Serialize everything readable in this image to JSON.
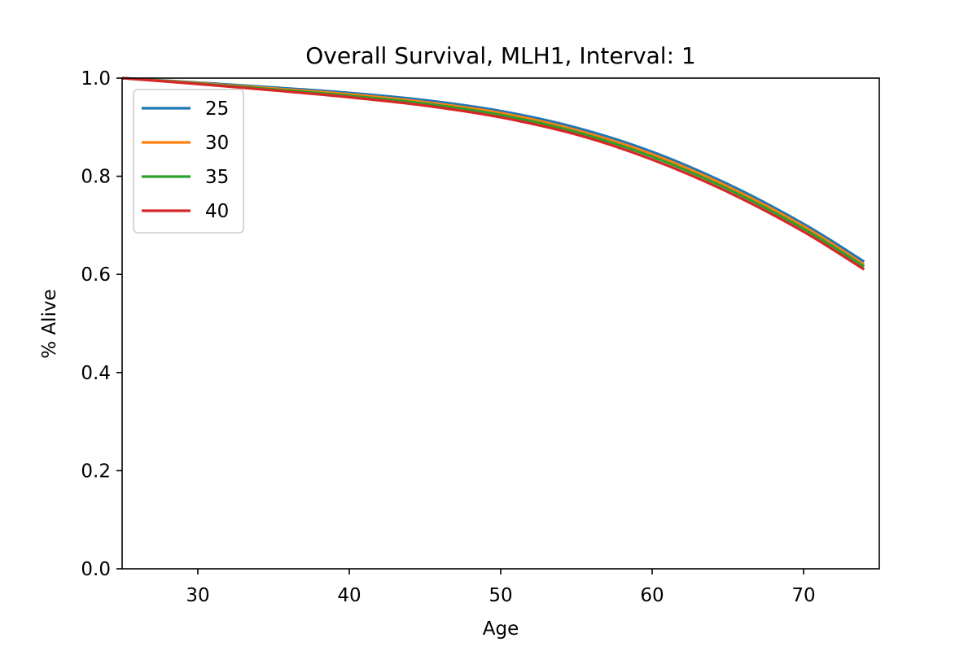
{
  "chart_data": {
    "type": "line",
    "title": "Overall Survival, MLH1, Interval: 1",
    "xlabel": "Age",
    "ylabel": "% Alive",
    "xlim": [
      25,
      75
    ],
    "ylim": [
      0.0,
      1.0
    ],
    "xticks": [
      30,
      40,
      50,
      60,
      70
    ],
    "yticks": [
      0.0,
      0.2,
      0.4,
      0.6,
      0.8,
      1.0
    ],
    "xtick_labels": [
      "30",
      "40",
      "50",
      "60",
      "70"
    ],
    "ytick_labels": [
      "0.0",
      "0.2",
      "0.4",
      "0.6",
      "0.8",
      "1.0"
    ],
    "grid": false,
    "legend": "upper-left",
    "x": [
      25,
      30,
      35,
      40,
      45,
      50,
      55,
      60,
      65,
      70,
      74
    ],
    "series": [
      {
        "name": "25",
        "color": "#1f77b4",
        "values": [
          1.0,
          0.991,
          0.981,
          0.97,
          0.955,
          0.933,
          0.899,
          0.85,
          0.784,
          0.703,
          0.626
        ]
      },
      {
        "name": "30",
        "color": "#ff7f0e",
        "values": [
          1.0,
          0.99,
          0.979,
          0.967,
          0.951,
          0.929,
          0.894,
          0.845,
          0.779,
          0.698,
          0.62
        ]
      },
      {
        "name": "35",
        "color": "#2ca02c",
        "values": [
          1.0,
          0.989,
          0.977,
          0.964,
          0.948,
          0.925,
          0.89,
          0.84,
          0.774,
          0.693,
          0.616
        ]
      },
      {
        "name": "40",
        "color": "#d62728",
        "values": [
          1.0,
          0.988,
          0.975,
          0.961,
          0.944,
          0.92,
          0.885,
          0.834,
          0.768,
          0.687,
          0.61
        ]
      }
    ]
  }
}
